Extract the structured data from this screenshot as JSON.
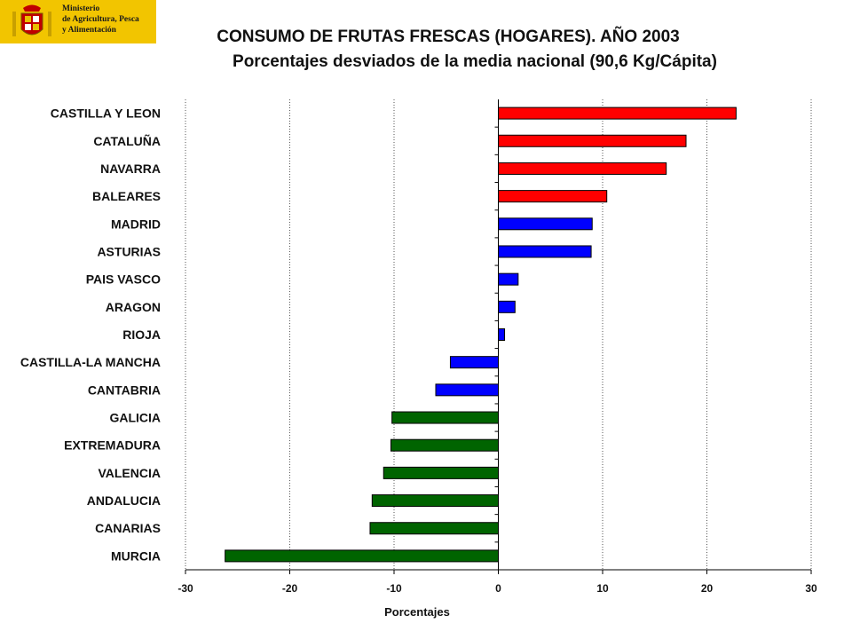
{
  "header": {
    "ministry_lines": [
      "Ministerio",
      "de Agricultura, Pesca",
      "y Alimentación"
    ],
    "title": "CONSUMO DE FRUTAS FRESCAS (HOGARES). AÑO 2003",
    "subtitle": "Porcentajes desviados de la media nacional (90,6 Kg/Cápita)"
  },
  "colors": {
    "above_high": "#ff0000",
    "above_low": "#0000ff",
    "below": "#006400",
    "logo_bg": "#f2c500"
  },
  "chart_data": {
    "type": "bar",
    "orientation": "horizontal",
    "title": "CONSUMO DE FRUTAS FRESCAS (HOGARES). AÑO 2003",
    "subtitle": "Porcentajes desviados de la media nacional (90,6 Kg/Cápita)",
    "xlabel": "Porcentajes",
    "xlim": [
      -30,
      30
    ],
    "xticks": [
      -30,
      -20,
      -10,
      0,
      10,
      20,
      30
    ],
    "grid": "vertical dotted",
    "categories": [
      "CASTILLA Y LEON",
      "CATALUÑA",
      "NAVARRA",
      "BALEARES",
      "MADRID",
      "ASTURIAS",
      "PAIS VASCO",
      "ARAGON",
      "RIOJA",
      "CASTILLA-LA MANCHA",
      "CANTABRIA",
      "GALICIA",
      "EXTREMADURA",
      "VALENCIA",
      "ANDALUCIA",
      "CANARIAS",
      "MURCIA"
    ],
    "values": [
      22.8,
      18.0,
      16.1,
      10.4,
      9.0,
      8.9,
      1.9,
      1.6,
      0.6,
      -4.6,
      -6.0,
      -10.2,
      -10.3,
      -11.0,
      -12.1,
      -12.3,
      -26.2
    ],
    "bar_colors": [
      "#ff0000",
      "#ff0000",
      "#ff0000",
      "#ff0000",
      "#0000ff",
      "#0000ff",
      "#0000ff",
      "#0000ff",
      "#0000ff",
      "#0000ff",
      "#0000ff",
      "#006400",
      "#006400",
      "#006400",
      "#006400",
      "#006400",
      "#006400"
    ]
  }
}
